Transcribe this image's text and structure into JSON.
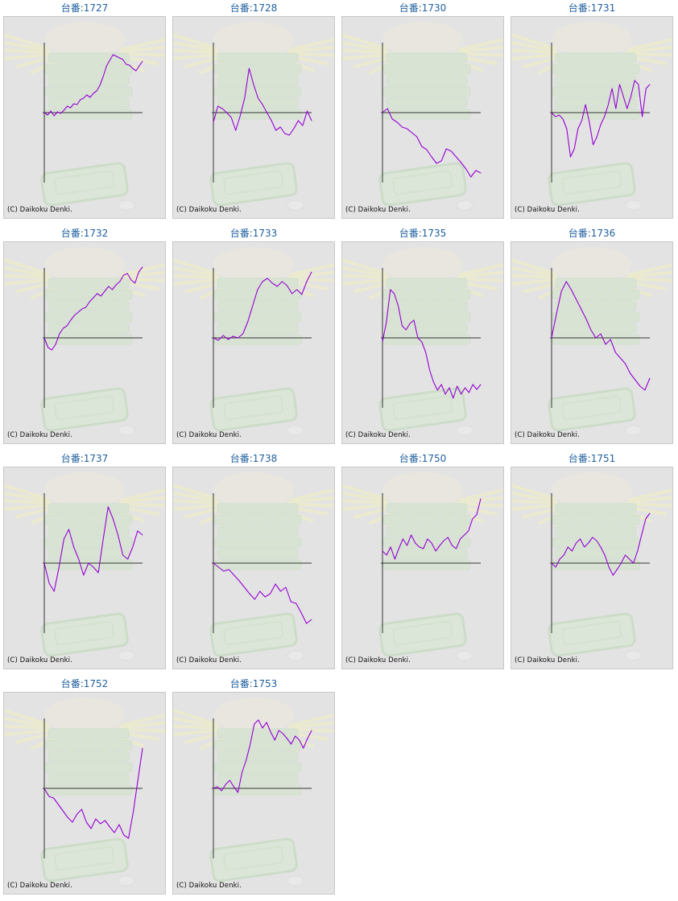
{
  "colors": {
    "line": "#9400d3",
    "axis": "#333333",
    "background": "#e3e3e3",
    "title": "#1f5f9f",
    "watermark_rays": "#f2f0c0",
    "watermark_box": "#d0e4c8"
  },
  "copyright": "(C) Daikoku Denki.",
  "chart_data": [
    {
      "type": "line",
      "title": "台番:1727",
      "axes": {
        "origin": "left-middle",
        "tick_labels": "none"
      },
      "series": [
        {
          "values": [
            0,
            -3,
            2,
            -4,
            1,
            -1,
            3,
            8,
            6,
            11,
            10,
            16,
            18,
            22,
            19,
            24,
            27,
            34,
            45,
            58,
            65,
            72,
            70,
            68,
            66,
            60,
            59,
            55,
            52,
            58,
            64
          ]
        }
      ]
    },
    {
      "type": "line",
      "title": "台番:1728",
      "axes": {
        "origin": "left-middle",
        "tick_labels": "none"
      },
      "series": [
        {
          "values": [
            -12,
            8,
            5,
            0,
            -6,
            -22,
            -4,
            18,
            55,
            35,
            18,
            10,
            0,
            -10,
            -22,
            -18,
            -26,
            -28,
            -20,
            -10,
            -16,
            2,
            -10
          ]
        }
      ]
    },
    {
      "type": "line",
      "title": "台番:1730",
      "axes": {
        "origin": "left-middle",
        "tick_labels": "none"
      },
      "series": [
        {
          "values": [
            0,
            5,
            -8,
            -12,
            -18,
            -20,
            -25,
            -30,
            -42,
            -46,
            -55,
            -63,
            -60,
            -45,
            -48,
            -55,
            -62,
            -70,
            -80,
            -72,
            -75
          ]
        }
      ]
    },
    {
      "type": "line",
      "title": "台番:1731",
      "axes": {
        "origin": "left-middle",
        "tick_labels": "none"
      },
      "series": [
        {
          "values": [
            0,
            -5,
            -3,
            -8,
            -20,
            -55,
            -45,
            -20,
            -10,
            10,
            -12,
            -40,
            -30,
            -15,
            -5,
            10,
            30,
            5,
            35,
            20,
            5,
            20,
            40,
            35,
            -5,
            30,
            35
          ]
        }
      ]
    },
    {
      "type": "line",
      "title": "台番:1732",
      "axes": {
        "origin": "left-middle",
        "tick_labels": "none"
      },
      "series": [
        {
          "values": [
            0,
            -12,
            -15,
            -8,
            5,
            12,
            15,
            22,
            28,
            32,
            36,
            38,
            45,
            50,
            55,
            52,
            58,
            64,
            60,
            66,
            70,
            78,
            80,
            72,
            68,
            82,
            88
          ]
        }
      ]
    },
    {
      "type": "line",
      "title": "台番:1733",
      "axes": {
        "origin": "left-middle",
        "tick_labels": "none"
      },
      "series": [
        {
          "values": [
            0,
            -3,
            3,
            -2,
            2,
            0,
            5,
            20,
            40,
            60,
            70,
            74,
            68,
            64,
            70,
            65,
            55,
            60,
            54,
            70,
            82
          ]
        }
      ]
    },
    {
      "type": "line",
      "title": "台番:1735",
      "axes": {
        "origin": "left-middle",
        "tick_labels": "none"
      },
      "series": [
        {
          "values": [
            -5,
            20,
            60,
            55,
            40,
            15,
            10,
            18,
            22,
            0,
            -5,
            -18,
            -40,
            -55,
            -65,
            -58,
            -70,
            -62,
            -75,
            -60,
            -70,
            -62,
            -68,
            -58,
            -64,
            -58
          ]
        }
      ]
    },
    {
      "type": "line",
      "title": "台番:1736",
      "axes": {
        "origin": "left-middle",
        "tick_labels": "none"
      },
      "series": [
        {
          "values": [
            0,
            30,
            58,
            70,
            60,
            48,
            36,
            24,
            10,
            0,
            5,
            -8,
            -2,
            -18,
            -25,
            -32,
            -44,
            -52,
            -60,
            -65,
            -50
          ]
        }
      ]
    },
    {
      "type": "line",
      "title": "台番:1737",
      "axes": {
        "origin": "left-middle",
        "tick_labels": "none"
      },
      "series": [
        {
          "values": [
            0,
            -25,
            -35,
            -5,
            30,
            42,
            20,
            5,
            -15,
            0,
            -5,
            -12,
            30,
            70,
            55,
            35,
            10,
            5,
            20,
            40,
            35
          ]
        }
      ]
    },
    {
      "type": "line",
      "title": "台番:1738",
      "axes": {
        "origin": "left-middle",
        "tick_labels": "none"
      },
      "series": [
        {
          "values": [
            0,
            -5,
            -10,
            -8,
            -15,
            -22,
            -30,
            -38,
            -45,
            -35,
            -42,
            -38,
            -26,
            -35,
            -30,
            -48,
            -50,
            -62,
            -75,
            -70
          ]
        }
      ]
    },
    {
      "type": "line",
      "title": "台番:1750",
      "axes": {
        "origin": "left-middle",
        "tick_labels": "none"
      },
      "series": [
        {
          "values": [
            15,
            10,
            20,
            5,
            18,
            30,
            22,
            35,
            25,
            20,
            18,
            30,
            25,
            15,
            22,
            28,
            32,
            22,
            18,
            30,
            35,
            40,
            55,
            60,
            80
          ]
        }
      ]
    },
    {
      "type": "line",
      "title": "台番:1751",
      "axes": {
        "origin": "left-middle",
        "tick_labels": "none"
      },
      "series": [
        {
          "values": [
            0,
            -5,
            5,
            10,
            20,
            15,
            25,
            30,
            20,
            25,
            32,
            28,
            20,
            10,
            -5,
            -15,
            -8,
            0,
            10,
            5,
            0,
            15,
            35,
            55,
            62
          ]
        }
      ]
    },
    {
      "type": "line",
      "title": "台番:1752",
      "axes": {
        "origin": "left-middle",
        "tick_labels": "none"
      },
      "series": [
        {
          "values": [
            0,
            -10,
            -12,
            -20,
            -28,
            -36,
            -42,
            -32,
            -26,
            -42,
            -50,
            -38,
            -44,
            -40,
            -48,
            -55,
            -45,
            -58,
            -62,
            -30,
            10,
            50
          ]
        }
      ]
    },
    {
      "type": "line",
      "title": "台番:1753",
      "axes": {
        "origin": "left-middle",
        "tick_labels": "none"
      },
      "series": [
        {
          "values": [
            0,
            2,
            -3,
            5,
            10,
            2,
            -5,
            20,
            35,
            55,
            80,
            85,
            75,
            82,
            70,
            60,
            72,
            68,
            62,
            55,
            65,
            60,
            50,
            62,
            72
          ]
        }
      ]
    }
  ]
}
